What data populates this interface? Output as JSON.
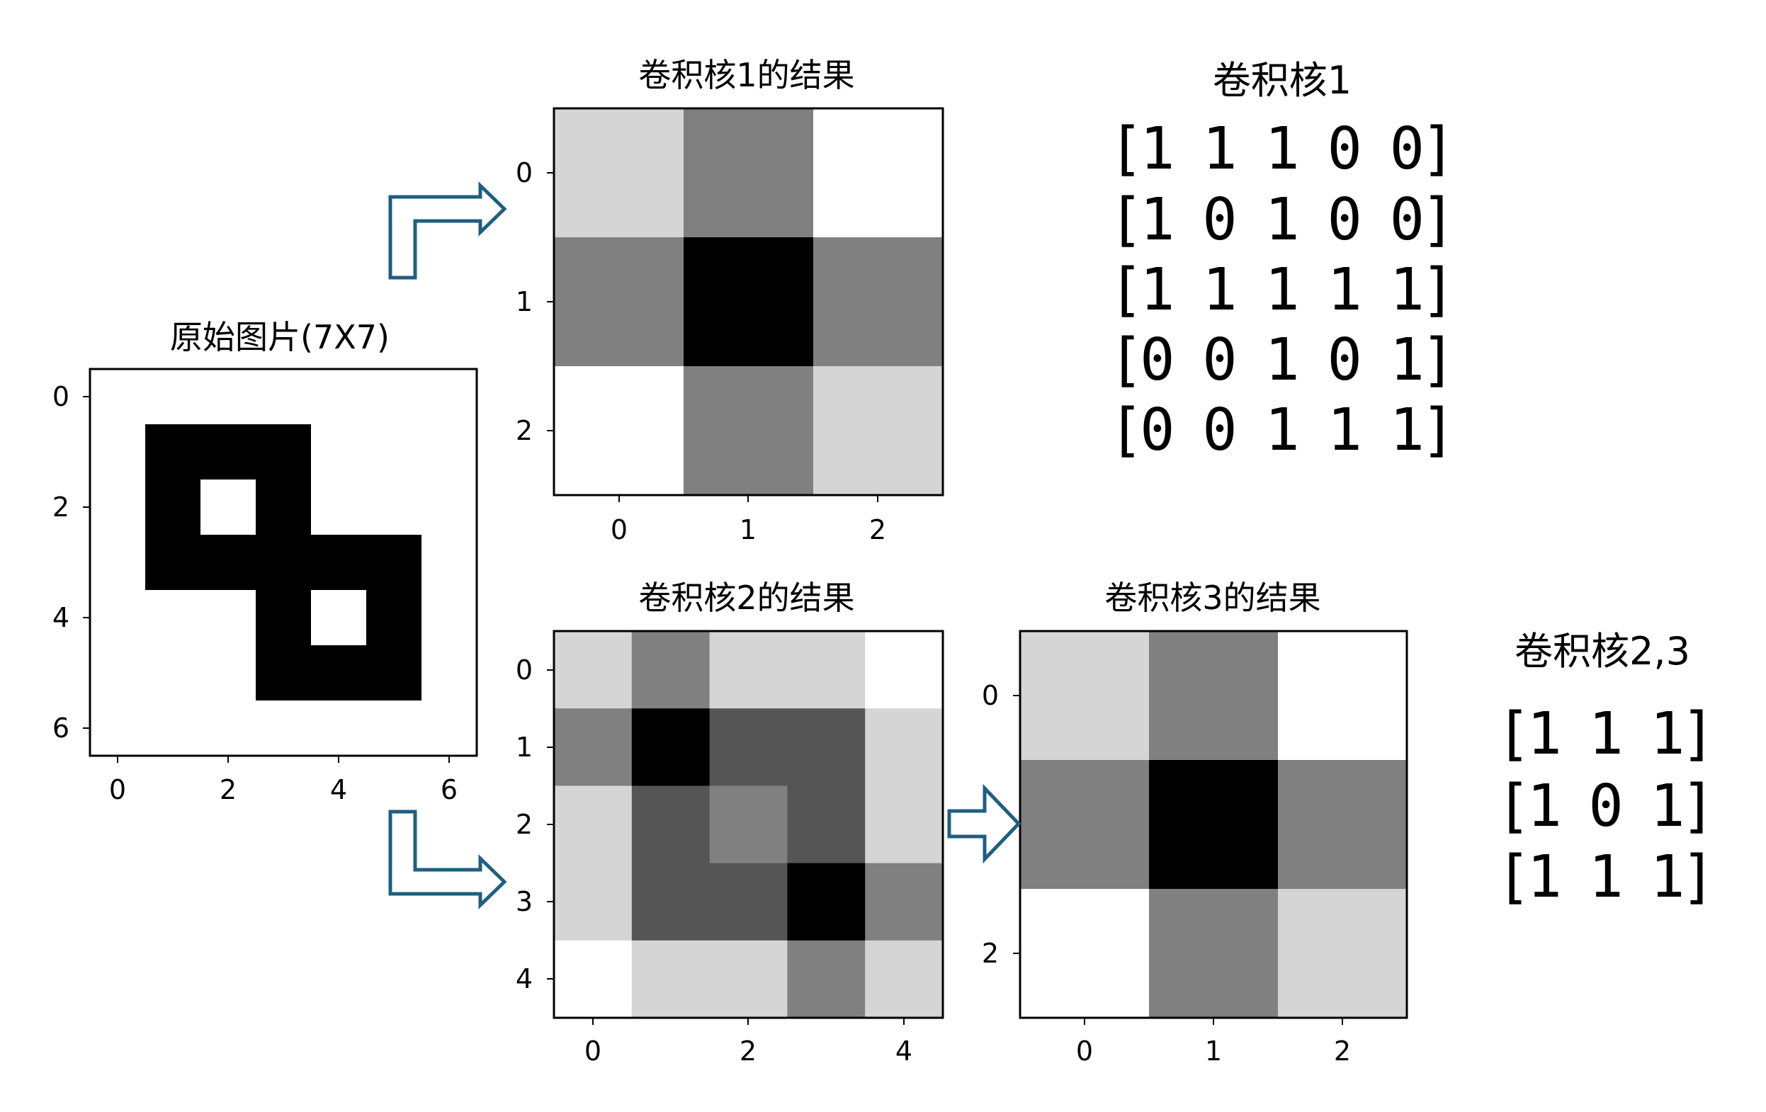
{
  "figure": {
    "original": {
      "title": "原始图片(7X7)",
      "xticks": [
        "0",
        "2",
        "4",
        "6"
      ],
      "yticks": [
        "0",
        "2",
        "4",
        "6"
      ],
      "pixels": [
        [
          0,
          0,
          0,
          0,
          0,
          0,
          0
        ],
        [
          0,
          1,
          1,
          1,
          0,
          0,
          0
        ],
        [
          0,
          1,
          0,
          1,
          0,
          0,
          0
        ],
        [
          0,
          1,
          1,
          1,
          1,
          1,
          0
        ],
        [
          0,
          0,
          0,
          1,
          0,
          1,
          0
        ],
        [
          0,
          0,
          0,
          1,
          1,
          1,
          0
        ],
        [
          0,
          0,
          0,
          0,
          0,
          0,
          0
        ]
      ]
    },
    "result1": {
      "title": "卷积核1的结果",
      "xticks": [
        "0",
        "1",
        "2"
      ],
      "yticks": [
        "0",
        "1",
        "2"
      ],
      "values": [
        [
          3,
          5,
          2
        ],
        [
          5,
          8,
          5
        ],
        [
          2,
          5,
          3
        ]
      ]
    },
    "result2": {
      "title": "卷积核2的结果",
      "xticks": [
        "0",
        "2",
        "4"
      ],
      "yticks": [
        "0",
        "1",
        "2",
        "3",
        "4"
      ],
      "values": [
        [
          2,
          4,
          2,
          2,
          1
        ],
        [
          4,
          7,
          5,
          5,
          2
        ],
        [
          2,
          5,
          4,
          5,
          2
        ],
        [
          2,
          5,
          5,
          7,
          4
        ],
        [
          1,
          2,
          2,
          4,
          2
        ]
      ]
    },
    "result3": {
      "title": "卷积核3的结果",
      "xticks": [
        "0",
        "1",
        "2"
      ],
      "yticks": [
        "0",
        "2"
      ],
      "values": [
        [
          2,
          4,
          1
        ],
        [
          4,
          7,
          4
        ],
        [
          1,
          4,
          2
        ]
      ]
    },
    "kernel1": {
      "title": "卷积核1",
      "rows": [
        "[1 1 1 0 0]",
        "[1 0 1 0 0]",
        "[1 1 1 1 1]",
        "[0 0 1 0 1]",
        "[0 0 1 1 1]"
      ]
    },
    "kernel23": {
      "title": "卷积核2,3",
      "rows": [
        "[1 1 1]",
        "[1 0 1]",
        "[1 1 1]"
      ]
    },
    "arrow_color": "#1f5f80"
  }
}
